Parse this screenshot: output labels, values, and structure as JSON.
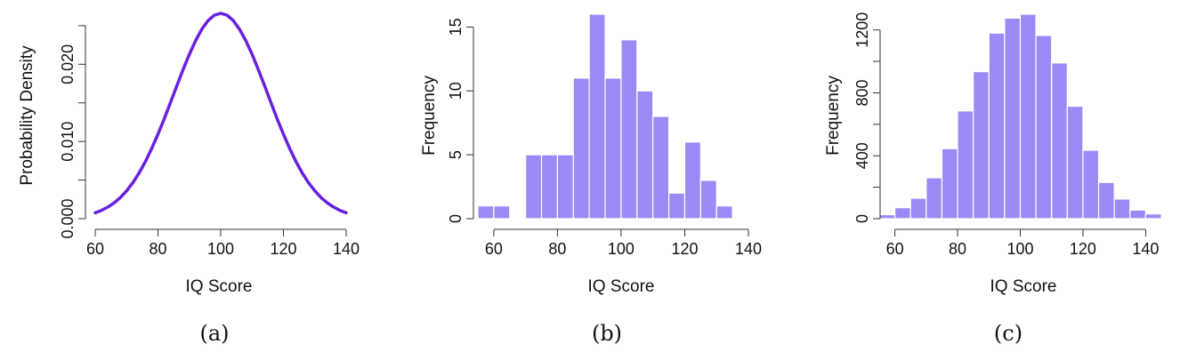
{
  "chart_data": [
    {
      "type": "line",
      "caption": "(a)",
      "xlabel": "IQ Score",
      "ylabel": "Probability Density",
      "xlim": [
        60,
        140
      ],
      "ylim": [
        0,
        0.0266
      ],
      "xticks": [
        60,
        80,
        100,
        120,
        140
      ],
      "yticks": [
        0.0,
        0.005,
        0.01,
        0.015,
        0.02,
        0.025
      ],
      "ytick_labels": [
        "0.000",
        "",
        "0.010",
        "",
        "0.020",
        ""
      ],
      "series": [
        {
          "color": "#6a1fe0",
          "x": [
            60,
            62,
            64,
            66,
            68,
            70,
            72,
            74,
            76,
            78,
            80,
            82,
            84,
            86,
            88,
            90,
            92,
            94,
            96,
            98,
            100,
            102,
            104,
            106,
            108,
            110,
            112,
            114,
            116,
            118,
            120,
            122,
            124,
            126,
            128,
            130,
            132,
            134,
            136,
            138,
            140
          ],
          "y": [
            0.00076,
            0.00114,
            0.00167,
            0.00238,
            0.00329,
            0.00444,
            0.00585,
            0.00751,
            0.00939,
            0.01146,
            0.01365,
            0.01586,
            0.01798,
            0.01991,
            0.02155,
            0.02283,
            0.02366,
            0.02399,
            0.02399,
            0.02366,
            0.0266,
            0.02614,
            0.02482,
            0.02282,
            0.02031,
            0.0176,
            0.01484,
            0.01216,
            0.00965,
            0.00741,
            0.00552,
            0.00398,
            0.00278,
            0.00189,
            0.00124,
            0.00079,
            0.00049,
            0.00029,
            0.00017,
            0.0001,
            0.00076
          ]
        }
      ]
    },
    {
      "type": "bar",
      "caption": "(b)",
      "xlabel": "IQ Score",
      "ylabel": "Frequency",
      "xlim": [
        55,
        140
      ],
      "ylim": [
        0,
        16
      ],
      "xticks": [
        60,
        80,
        100,
        120,
        140
      ],
      "yticks": [
        0,
        5,
        10,
        15
      ],
      "bar_color": "#9b8af5",
      "bins": [
        [
          55,
          60
        ],
        [
          60,
          65
        ],
        [
          70,
          75
        ],
        [
          75,
          80
        ],
        [
          80,
          85
        ],
        [
          85,
          90
        ],
        [
          90,
          95
        ],
        [
          95,
          100
        ],
        [
          100,
          105
        ],
        [
          105,
          110
        ],
        [
          110,
          115
        ],
        [
          115,
          120
        ],
        [
          120,
          125
        ],
        [
          125,
          130
        ],
        [
          130,
          135
        ]
      ],
      "values": [
        1,
        1,
        5,
        5,
        5,
        11,
        16,
        11,
        14,
        10,
        8,
        2,
        6,
        3,
        1
      ]
    },
    {
      "type": "bar",
      "caption": "(c)",
      "xlabel": "IQ Score",
      "ylabel": "Frequency",
      "xlim": [
        55,
        145
      ],
      "ylim": [
        0,
        1300
      ],
      "xticks": [
        60,
        80,
        100,
        120,
        140
      ],
      "yticks": [
        0,
        200,
        400,
        600,
        800,
        1000,
        1200
      ],
      "ytick_labels": [
        "0",
        "",
        "400",
        "",
        "800",
        "",
        "1200"
      ],
      "bar_color": "#9b8af5",
      "bins": [
        [
          55,
          60
        ],
        [
          60,
          65
        ],
        [
          65,
          70
        ],
        [
          70,
          75
        ],
        [
          75,
          80
        ],
        [
          80,
          85
        ],
        [
          85,
          90
        ],
        [
          90,
          95
        ],
        [
          95,
          100
        ],
        [
          100,
          105
        ],
        [
          105,
          110
        ],
        [
          110,
          115
        ],
        [
          115,
          120
        ],
        [
          120,
          125
        ],
        [
          125,
          130
        ],
        [
          130,
          135
        ],
        [
          135,
          140
        ],
        [
          140,
          145
        ]
      ],
      "values": [
        25,
        70,
        130,
        260,
        445,
        685,
        935,
        1180,
        1275,
        1300,
        1165,
        990,
        715,
        435,
        230,
        125,
        55,
        30
      ]
    }
  ]
}
